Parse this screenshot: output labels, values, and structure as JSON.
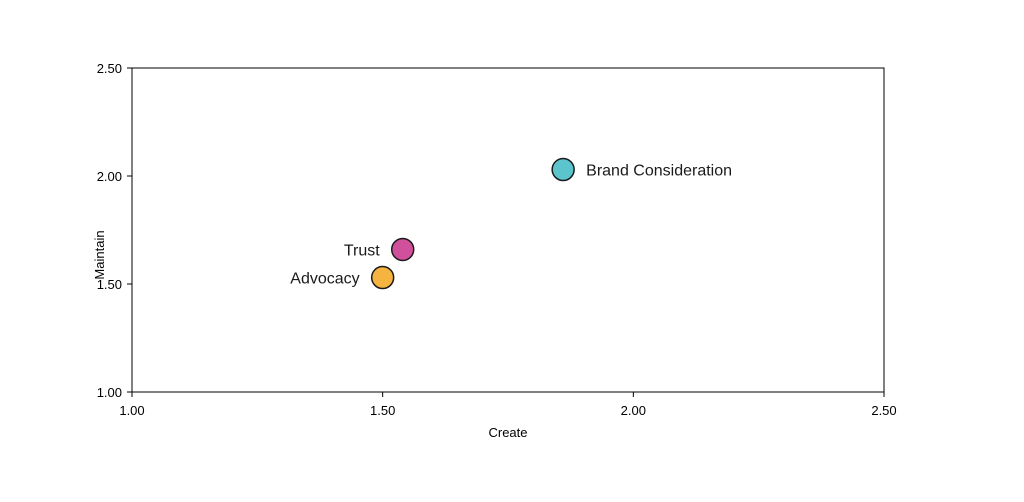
{
  "chart_data": {
    "type": "scatter",
    "title": "",
    "xlabel": "Create",
    "ylabel": "Maintain",
    "xlim": [
      1.0,
      2.5
    ],
    "ylim": [
      1.0,
      2.5
    ],
    "xticks": [
      "1.00",
      "1.50",
      "2.00",
      "2.50"
    ],
    "yticks": [
      "1.00",
      "1.50",
      "2.00",
      "2.50"
    ],
    "grid": false,
    "points": [
      {
        "label": "Brand Consideration",
        "x": 1.86,
        "y": 2.03,
        "color": "#5bc4cc",
        "label_side": "right"
      },
      {
        "label": "Trust",
        "x": 1.54,
        "y": 1.66,
        "color": "#d0509b",
        "label_side": "left"
      },
      {
        "label": "Advocacy",
        "x": 1.5,
        "y": 1.53,
        "color": "#f5b340",
        "label_side": "left"
      }
    ]
  }
}
